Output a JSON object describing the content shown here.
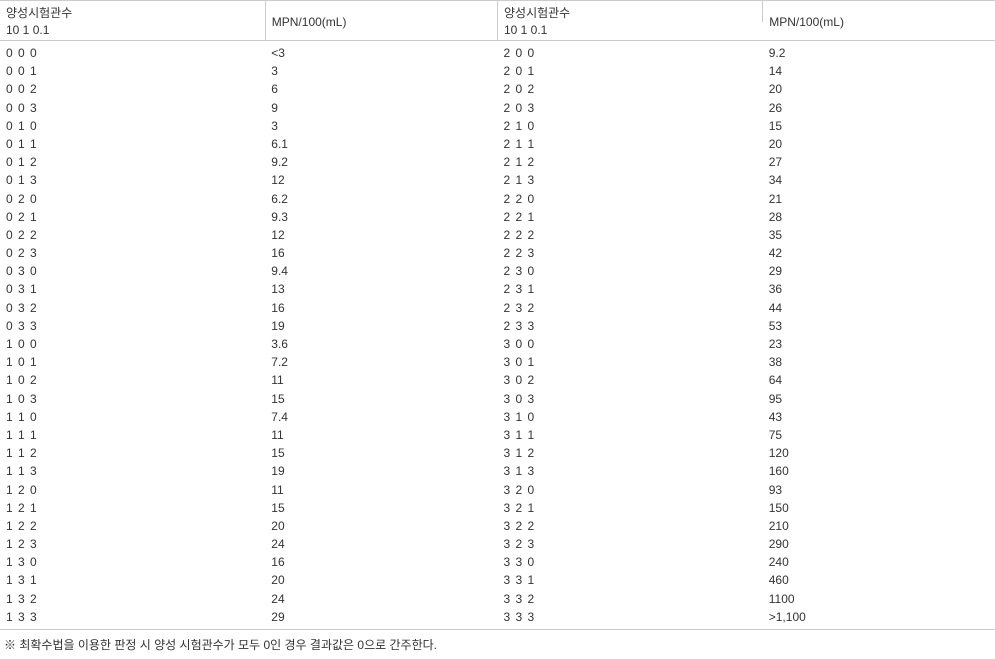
{
  "headers": {
    "tubes_label": "양성시험관수",
    "tubes_sub": "10 1 0.1",
    "mpn_label": "MPN/100(mL)"
  },
  "left": {
    "columns": [
      "tubes",
      "mpn"
    ],
    "rows": [
      [
        "0 0 0",
        "<3"
      ],
      [
        "0 0 1",
        "3"
      ],
      [
        "0 0 2",
        "6"
      ],
      [
        "0 0 3",
        "9"
      ],
      [
        "0 1 0",
        "3"
      ],
      [
        "0 1 1",
        "6.1"
      ],
      [
        "0 1 2",
        "9.2"
      ],
      [
        "0 1 3",
        "12"
      ],
      [
        "0 2 0",
        "6.2"
      ],
      [
        "0 2 1",
        "9.3"
      ],
      [
        "0 2 2",
        "12"
      ],
      [
        "0 2 3",
        "16"
      ],
      [
        "0 3 0",
        "9.4"
      ],
      [
        "0 3 1",
        "13"
      ],
      [
        "0 3 2",
        "16"
      ],
      [
        "0 3 3",
        "19"
      ],
      [
        "1 0 0",
        "3.6"
      ],
      [
        "1 0 1",
        "7.2"
      ],
      [
        "1 0 2",
        "11"
      ],
      [
        "1 0 3",
        "15"
      ],
      [
        "1 1 0",
        "7.4"
      ],
      [
        "1 1 1",
        "11"
      ],
      [
        "1 1 2",
        "15"
      ],
      [
        "1 1 3",
        "19"
      ],
      [
        "1 2 0",
        "11"
      ],
      [
        "1 2 1",
        "15"
      ],
      [
        "1 2 2",
        "20"
      ],
      [
        "1 2 3",
        "24"
      ],
      [
        "1 3 0",
        "16"
      ],
      [
        "1 3 1",
        "20"
      ],
      [
        "1 3 2",
        "24"
      ],
      [
        "1 3 3",
        "29"
      ]
    ]
  },
  "right": {
    "columns": [
      "tubes",
      "mpn"
    ],
    "rows": [
      [
        "2 0 0",
        "9.2"
      ],
      [
        "2 0 1",
        "14"
      ],
      [
        "2 0 2",
        "20"
      ],
      [
        "2 0 3",
        "26"
      ],
      [
        "2 1 0",
        "15"
      ],
      [
        "2 1 1",
        "20"
      ],
      [
        "2 1 2",
        "27"
      ],
      [
        "2 1 3",
        "34"
      ],
      [
        "2 2 0",
        "21"
      ],
      [
        "2 2 1",
        "28"
      ],
      [
        "2 2 2",
        "35"
      ],
      [
        "2 2 3",
        "42"
      ],
      [
        "2 3 0",
        "29"
      ],
      [
        "2 3 1",
        "36"
      ],
      [
        "2 3 2",
        "44"
      ],
      [
        "2 3 3",
        "53"
      ],
      [
        "3 0 0",
        "23"
      ],
      [
        "3 0 1",
        "38"
      ],
      [
        "3 0 2",
        "64"
      ],
      [
        "3 0 3",
        "95"
      ],
      [
        "3 1 0",
        "43"
      ],
      [
        "3 1 1",
        "75"
      ],
      [
        "3 1 2",
        "120"
      ],
      [
        "3 1 3",
        "160"
      ],
      [
        "3 2 0",
        "93"
      ],
      [
        "3 2 1",
        "150"
      ],
      [
        "3 2 2",
        "210"
      ],
      [
        "3 2 3",
        "290"
      ],
      [
        "3 3 0",
        "240"
      ],
      [
        "3 3 1",
        "460"
      ],
      [
        "3 3 2",
        "1100"
      ],
      [
        "3 3 3",
        ">1,100"
      ]
    ]
  },
  "footnote": "※ 최확수법을 이용한 판정 시 양성 시험관수가 모두 0인 경우 결과값은 0으로 간주한다."
}
